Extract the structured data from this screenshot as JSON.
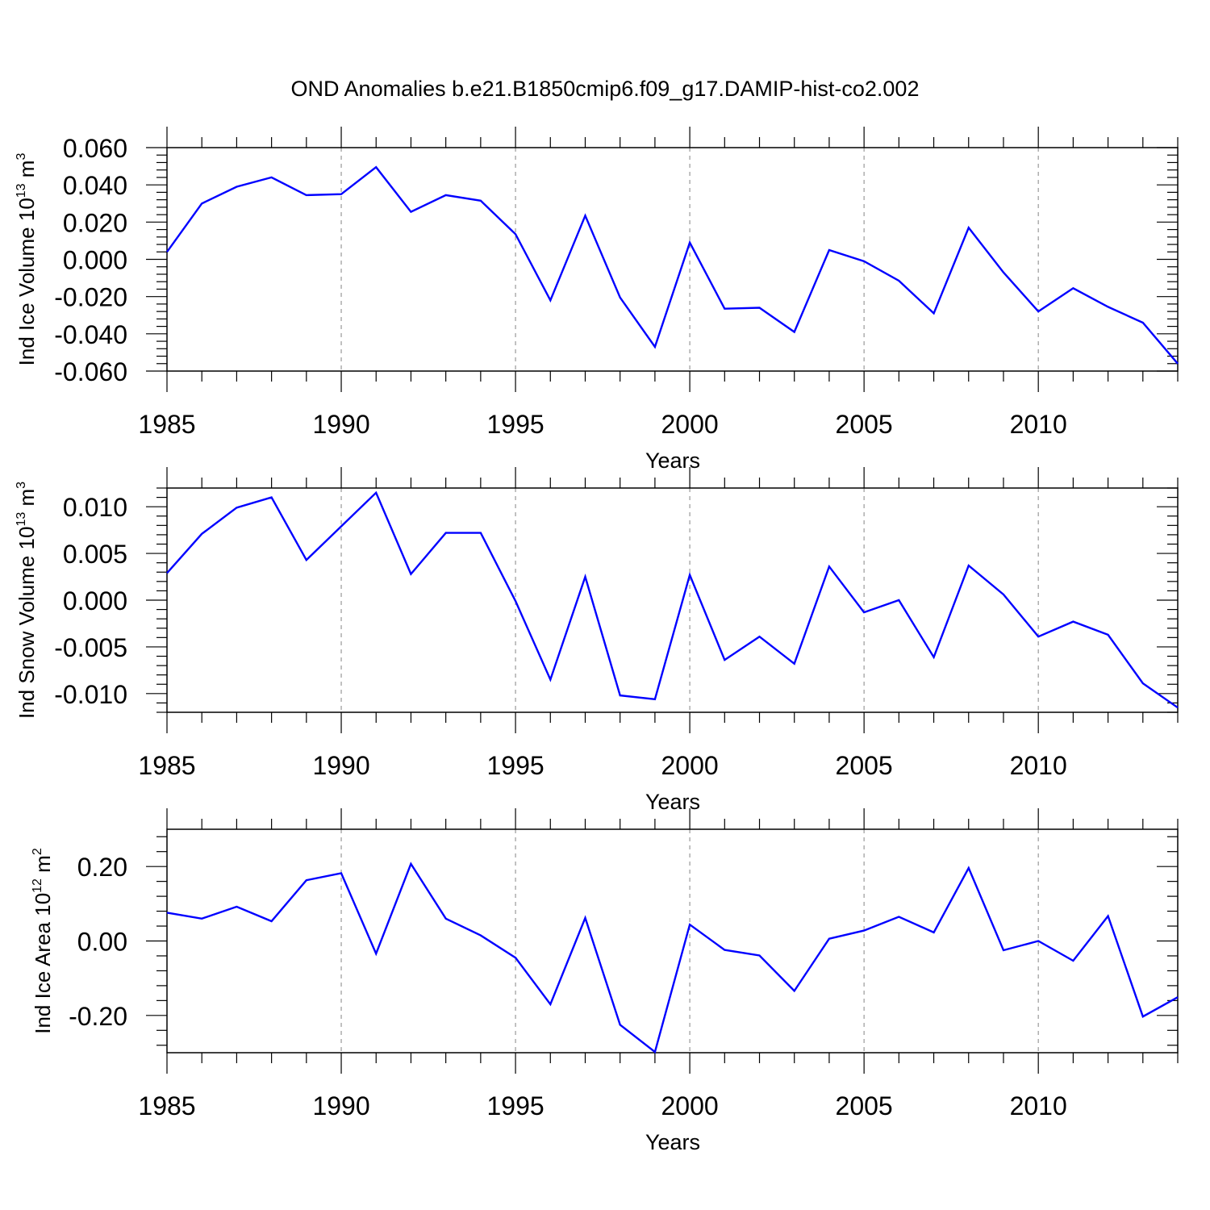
{
  "title": "OND Anomalies b.e21.B1850cmip6.f09_g17.DAMIP-hist-co2.002",
  "chart_data": [
    {
      "type": "line",
      "ylabel_main": "Ind Ice Volume 10",
      "ylabel_exp": "13",
      "ylabel_unit": "m",
      "ylabel_unit_exp": "3",
      "xlabel": "Years",
      "xlim": [
        1985,
        2014
      ],
      "ylim": [
        -0.06,
        0.06
      ],
      "yticks": [
        -0.06,
        -0.04,
        -0.02,
        0.0,
        0.02,
        0.04,
        0.06
      ],
      "ytick_labels": [
        "-0.060",
        "-0.040",
        "-0.020",
        "0.000",
        "0.020",
        "0.040",
        "0.060"
      ],
      "xticks": [
        1985,
        1990,
        1995,
        2000,
        2005,
        2010
      ],
      "xtick_labels": [
        "1985",
        "1990",
        "1995",
        "2000",
        "2005",
        "2010"
      ],
      "grid": "vertical dashed at major x ticks",
      "line_color": "#0000ff",
      "x": [
        1985,
        1986,
        1987,
        1988,
        1989,
        1990,
        1991,
        1992,
        1993,
        1994,
        1995,
        1996,
        1997,
        1998,
        1999,
        2000,
        2001,
        2002,
        2003,
        2004,
        2005,
        2006,
        2007,
        2008,
        2009,
        2010,
        2011,
        2012,
        2013,
        2014
      ],
      "values": [
        0.004,
        0.03,
        0.039,
        0.044,
        0.0345,
        0.035,
        0.0495,
        0.0255,
        0.0345,
        0.0315,
        0.0135,
        -0.022,
        0.0235,
        -0.0205,
        -0.047,
        0.009,
        -0.0265,
        -0.026,
        -0.039,
        0.005,
        -0.001,
        -0.0115,
        -0.029,
        0.017,
        -0.007,
        -0.028,
        -0.0155,
        -0.0255,
        -0.034,
        -0.056
      ]
    },
    {
      "type": "line",
      "ylabel_main": "Ind Snow Volume 10",
      "ylabel_exp": "13",
      "ylabel_unit": "m",
      "ylabel_unit_exp": "3",
      "xlabel": "Years",
      "xlim": [
        1985,
        2014
      ],
      "ylim": [
        -0.012,
        0.012
      ],
      "yticks": [
        -0.01,
        -0.005,
        0.0,
        0.005,
        0.01
      ],
      "ytick_labels": [
        "-0.010",
        "-0.005",
        "0.000",
        "0.005",
        "0.010"
      ],
      "xticks": [
        1985,
        1990,
        1995,
        2000,
        2005,
        2010
      ],
      "xtick_labels": [
        "1985",
        "1990",
        "1995",
        "2000",
        "2005",
        "2010"
      ],
      "grid": "vertical dashed at major x ticks",
      "line_color": "#0000ff",
      "x": [
        1985,
        1986,
        1987,
        1988,
        1989,
        1990,
        1991,
        1992,
        1993,
        1994,
        1995,
        1996,
        1997,
        1998,
        1999,
        2000,
        2001,
        2002,
        2003,
        2004,
        2005,
        2006,
        2007,
        2008,
        2009,
        2010,
        2011,
        2012,
        2013,
        2014
      ],
      "values": [
        0.0029,
        0.0071,
        0.0099,
        0.011,
        0.0043,
        0.0079,
        0.0115,
        0.0028,
        0.0072,
        0.0072,
        -0.0001,
        -0.0085,
        0.0025,
        -0.0102,
        -0.0106,
        0.0027,
        -0.0064,
        -0.0039,
        -0.0068,
        0.0036,
        -0.0013,
        0.0,
        -0.0061,
        0.0037,
        0.0006,
        -0.0039,
        -0.0023,
        -0.0037,
        -0.0089,
        -0.0115
      ]
    },
    {
      "type": "line",
      "ylabel_main": "Ind Ice Area 10",
      "ylabel_exp": "12",
      "ylabel_unit": "m",
      "ylabel_unit_exp": "2",
      "xlabel": "Years",
      "xlim": [
        1985,
        2014
      ],
      "ylim": [
        -0.3,
        0.3
      ],
      "yticks": [
        -0.2,
        0.0,
        0.2
      ],
      "ytick_labels": [
        "-0.20",
        "0.00",
        "0.20"
      ],
      "xticks": [
        1985,
        1990,
        1995,
        2000,
        2005,
        2010
      ],
      "xtick_labels": [
        "1985",
        "1990",
        "1995",
        "2000",
        "2005",
        "2010"
      ],
      "grid": "vertical dashed at major x ticks",
      "line_color": "#0000ff",
      "x": [
        1985,
        1986,
        1987,
        1988,
        1989,
        1990,
        1991,
        1992,
        1993,
        1994,
        1995,
        1996,
        1997,
        1998,
        1999,
        2000,
        2001,
        2002,
        2003,
        2004,
        2005,
        2006,
        2007,
        2008,
        2009,
        2010,
        2011,
        2012,
        2013,
        2014
      ],
      "values": [
        0.076,
        0.06,
        0.092,
        0.053,
        0.163,
        0.182,
        -0.034,
        0.207,
        0.06,
        0.015,
        -0.045,
        -0.17,
        0.062,
        -0.225,
        -0.298,
        0.044,
        -0.024,
        -0.039,
        -0.134,
        0.006,
        0.028,
        0.065,
        0.023,
        0.196,
        -0.025,
        0.0,
        -0.053,
        0.067,
        -0.203,
        -0.151
      ]
    }
  ]
}
